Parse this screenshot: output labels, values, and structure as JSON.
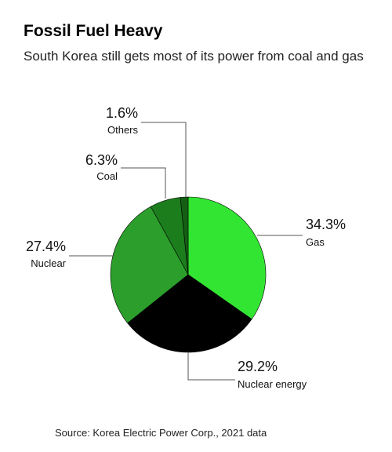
{
  "chart_data": {
    "type": "pie",
    "title": "Fossil Fuel Heavy",
    "subtitle": "South Korea still gets most of its power from coal and gas",
    "source": "Source: Korea Electric Power Corp., 2021 data",
    "categories": [
      "Gas",
      "Nuclear energy",
      "Nuclear",
      "Coal",
      "Others"
    ],
    "values": [
      34.3,
      29.2,
      27.4,
      6.3,
      1.6
    ],
    "value_labels": [
      "34.3%",
      "29.2%",
      "27.4%",
      "6.3%",
      "1.6%"
    ],
    "colors": [
      "#33e533",
      "#000000",
      "#2b9e2b",
      "#1c7d1c",
      "#145e14"
    ]
  }
}
